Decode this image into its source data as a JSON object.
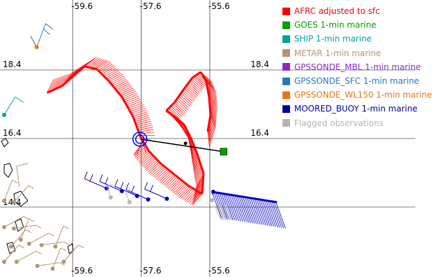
{
  "grid": {
    "lon_ticks": [
      "-59.6",
      "-57.6",
      "-55.6"
    ],
    "lat_ticks": [
      "18.4",
      "16.4",
      "14.4"
    ]
  },
  "legend": {
    "items": [
      {
        "label": "AFRC adjusted to sfc",
        "color": "#ff0000"
      },
      {
        "label": "GOES 1-min marine",
        "color": "#00a000"
      },
      {
        "label": "SHIP 1-min marine",
        "color": "#00a0a0"
      },
      {
        "label": "METAR 1-min marine",
        "color": "#b4966e"
      },
      {
        "label": "GPSSONDE_MBL 1-min marine",
        "color": "#8c28d2"
      },
      {
        "label": "GPSSONDE_SFC 1-min marine",
        "color": "#2878b4"
      },
      {
        "label": "GPSSONDE_WL150 1-min marine",
        "color": "#e67814"
      },
      {
        "label": "MOORED_BUOY 1-min marine",
        "color": "#0000a0"
      },
      {
        "label": "Flagged observations",
        "color": "#b4b4b4"
      }
    ]
  },
  "colors": {
    "afrc": "#ff0000",
    "goes": "#00a000",
    "ship": "#00a0a0",
    "metar": "#b4966e",
    "buoy": "#0000c8",
    "flagged": "#b4b4b4",
    "center": "#0000ff",
    "coast": "#000000",
    "grid": "#000000"
  }
}
